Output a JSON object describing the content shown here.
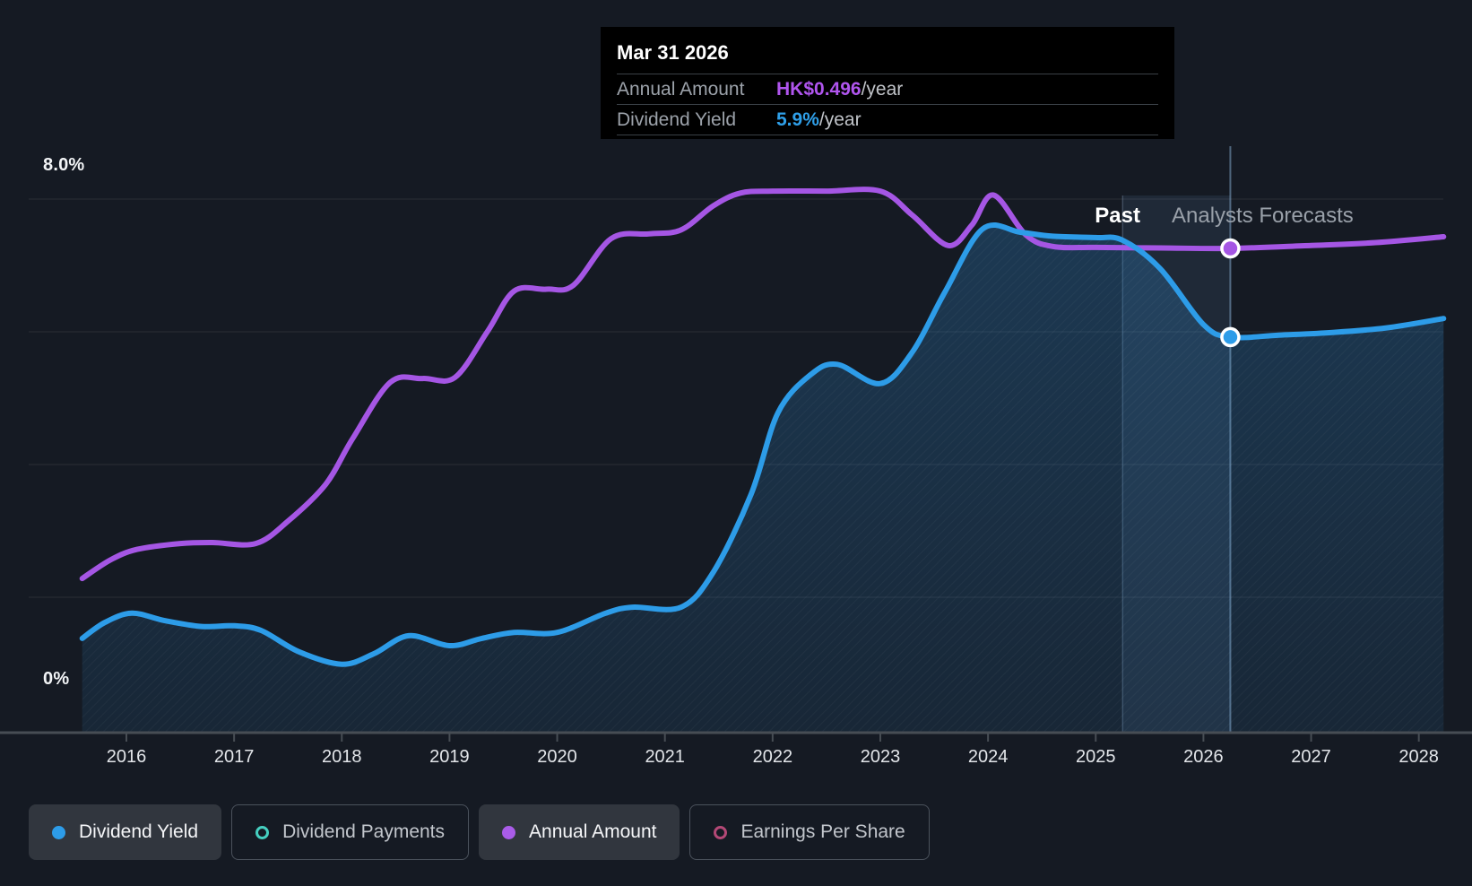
{
  "tooltip": {
    "title": "Mar 31 2026",
    "rows": [
      {
        "label": "Annual Amount",
        "value": "HK$0.496",
        "suffix": "/year",
        "color": "#b055ee"
      },
      {
        "label": "Dividend Yield",
        "value": "5.9%",
        "suffix": "/year",
        "color": "#2f9fe8"
      }
    ]
  },
  "annotations": {
    "past": "Past",
    "forecast": "Analysts Forecasts"
  },
  "y_axis": {
    "top_label": "8.0%",
    "bottom_label": "0%"
  },
  "x_axis": {
    "labels": [
      "2016",
      "2017",
      "2018",
      "2019",
      "2020",
      "2021",
      "2022",
      "2023",
      "2024",
      "2025",
      "2026",
      "2027",
      "2028"
    ]
  },
  "legend": {
    "items": [
      {
        "label": "Dividend Yield",
        "active": true,
        "marker": "filled",
        "color": "#2d9ce8"
      },
      {
        "label": "Dividend Payments",
        "active": false,
        "marker": "hollow",
        "color": "#45cfc0"
      },
      {
        "label": "Annual Amount",
        "active": true,
        "marker": "filled",
        "color": "#a95ce8"
      },
      {
        "label": "Earnings Per Share",
        "active": false,
        "marker": "hollow",
        "color": "#b34876"
      }
    ]
  },
  "colors": {
    "background": "#151a23",
    "blue_line": "#2d9ce8",
    "purple_line": "#a556e4",
    "grid": "rgba(255,255,255,0.09)",
    "axis": "#474d54",
    "band": "rgba(125,180,235,0.10)",
    "band_edge": "rgba(173,205,235,0.25)",
    "crosshair": "rgba(150,195,235,0.45)",
    "area_top": "rgba(45,130,195,0.30)",
    "area_bottom": "rgba(45,130,195,0.12)"
  },
  "chart_data": {
    "type": "line",
    "title": "Dividend yield and annual amount history with analyst forecasts",
    "x_range": [
      2015.59,
      2028.23
    ],
    "ylim_percent": [
      0,
      8
    ],
    "grid_percent_lines": [
      8,
      6,
      4,
      2
    ],
    "past_until": 2025.25,
    "crosshair_x": 2026.25,
    "legend_position": "bottom",
    "series": [
      {
        "name": "Dividend Yield",
        "axis": "yield",
        "unit": "%",
        "color": "#2d9ce8",
        "area": true,
        "points": [
          [
            2015.59,
            1.38
          ],
          [
            2015.8,
            1.62
          ],
          [
            2016.05,
            1.76
          ],
          [
            2016.35,
            1.65
          ],
          [
            2016.7,
            1.56
          ],
          [
            2017.0,
            1.57
          ],
          [
            2017.25,
            1.5
          ],
          [
            2017.6,
            1.18
          ],
          [
            2018.0,
            0.99
          ],
          [
            2018.3,
            1.15
          ],
          [
            2018.62,
            1.42
          ],
          [
            2019.0,
            1.27
          ],
          [
            2019.3,
            1.38
          ],
          [
            2019.6,
            1.47
          ],
          [
            2020.0,
            1.47
          ],
          [
            2020.45,
            1.76
          ],
          [
            2020.7,
            1.85
          ],
          [
            2021.15,
            1.85
          ],
          [
            2021.45,
            2.38
          ],
          [
            2021.8,
            3.55
          ],
          [
            2022.05,
            4.78
          ],
          [
            2022.35,
            5.35
          ],
          [
            2022.6,
            5.51
          ],
          [
            2023.0,
            5.22
          ],
          [
            2023.3,
            5.7
          ],
          [
            2023.6,
            6.6
          ],
          [
            2023.95,
            7.55
          ],
          [
            2024.3,
            7.5
          ],
          [
            2024.6,
            7.44
          ],
          [
            2025.0,
            7.42
          ],
          [
            2025.25,
            7.38
          ],
          [
            2025.6,
            6.95
          ],
          [
            2026.0,
            6.11
          ],
          [
            2026.25,
            5.92
          ],
          [
            2026.7,
            5.95
          ],
          [
            2027.2,
            5.99
          ],
          [
            2027.7,
            6.06
          ],
          [
            2028.23,
            6.2
          ]
        ]
      },
      {
        "name": "Annual Amount",
        "axis": "amount",
        "unit": "HK$/year",
        "color": "#a556e4",
        "area": false,
        "points": [
          [
            2015.59,
            0.156
          ],
          [
            2015.85,
            0.175
          ],
          [
            2016.1,
            0.186
          ],
          [
            2016.5,
            0.192
          ],
          [
            2016.8,
            0.193
          ],
          [
            2017.2,
            0.192
          ],
          [
            2017.5,
            0.215
          ],
          [
            2017.85,
            0.253
          ],
          [
            2018.1,
            0.3
          ],
          [
            2018.45,
            0.358
          ],
          [
            2018.75,
            0.362
          ],
          [
            2019.05,
            0.363
          ],
          [
            2019.35,
            0.41
          ],
          [
            2019.6,
            0.452
          ],
          [
            2019.9,
            0.454
          ],
          [
            2020.15,
            0.458
          ],
          [
            2020.5,
            0.506
          ],
          [
            2020.85,
            0.511
          ],
          [
            2021.15,
            0.515
          ],
          [
            2021.45,
            0.54
          ],
          [
            2021.7,
            0.553
          ],
          [
            2022.0,
            0.555
          ],
          [
            2022.5,
            0.555
          ],
          [
            2023.0,
            0.555
          ],
          [
            2023.3,
            0.53
          ],
          [
            2023.63,
            0.499
          ],
          [
            2023.85,
            0.52
          ],
          [
            2024.05,
            0.551
          ],
          [
            2024.35,
            0.51
          ],
          [
            2024.6,
            0.498
          ],
          [
            2025.0,
            0.497
          ],
          [
            2025.6,
            0.4965
          ],
          [
            2026.25,
            0.496
          ],
          [
            2027.0,
            0.499
          ],
          [
            2027.6,
            0.502
          ],
          [
            2028.23,
            0.508
          ]
        ]
      }
    ],
    "markers": [
      {
        "series": "Annual Amount",
        "x": 2026.25,
        "value": 0.496,
        "display": "HK$0.496/year"
      },
      {
        "series": "Dividend Yield",
        "x": 2026.25,
        "value": 5.92,
        "display": "5.9%/year"
      }
    ]
  }
}
